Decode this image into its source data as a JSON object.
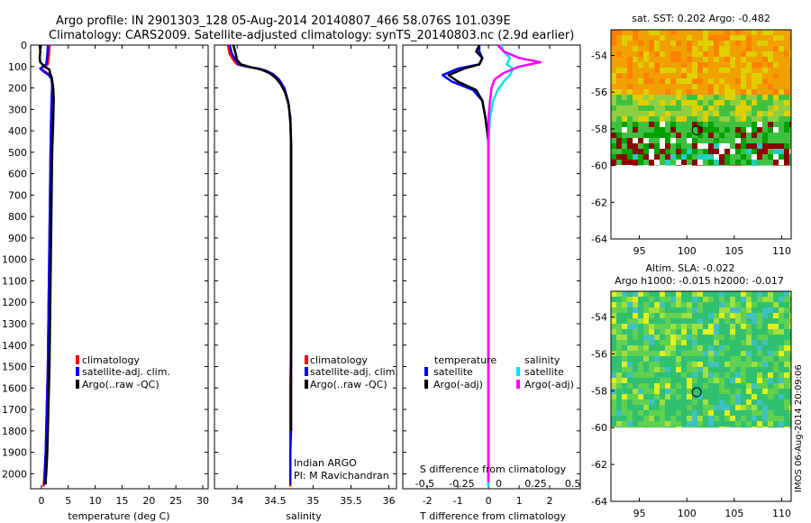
{
  "figure": {
    "title_line1": "Argo profile: IN 2901303_128 05-Aug-2014 20140807_466 58.076S 101.039E",
    "title_line2": "Climatology: CARS2009. Satellite-adjusted climatology: synTS_20140803.nc (2.9d earlier)",
    "credit": "IMOS 06-Aug-2014 20:09:06",
    "institution": "Indian ARGO",
    "pi": "PI: M Ravichandran"
  },
  "colors": {
    "climatology": "#ff0000",
    "satellite": "#0000ff",
    "argo": "#000000",
    "satellite_salinity": "#00e5e5",
    "argo_salinity": "#ff00ff"
  },
  "chart_data": [
    {
      "id": "temperature",
      "type": "line",
      "xlabel": "temperature (deg C)",
      "ylabel": "",
      "xlim": [
        -2,
        31
      ],
      "ylim": [
        2070,
        0
      ],
      "xticks": [
        0,
        5,
        10,
        15,
        20,
        25,
        30
      ],
      "yticks": [
        0,
        100,
        200,
        300,
        400,
        500,
        600,
        700,
        800,
        900,
        1000,
        1100,
        1200,
        1300,
        1400,
        1500,
        1600,
        1700,
        1800,
        1900,
        2000
      ],
      "legend": [
        "climatology",
        "satellite-adj. clim.",
        "Argo(..raw -QC)"
      ],
      "legend_position": "lower-left",
      "series": [
        {
          "name": "climatology",
          "color": "#ff0000",
          "x": [
            1.5,
            1.4,
            1.2,
            0.5,
            -0.2,
            0.8,
            1.6,
            1.9,
            2.0,
            1.9,
            1.8,
            1.7,
            1.6,
            1.5,
            1.4,
            1.3,
            1.2,
            1.1,
            1.0,
            0.9,
            0.8,
            0.7,
            0.6,
            0.5,
            0.4
          ],
          "y": [
            0,
            50,
            90,
            100,
            110,
            125,
            140,
            160,
            190,
            250,
            350,
            500,
            700,
            900,
            1100,
            1300,
            1500,
            1600,
            1700,
            1800,
            1900,
            1950,
            2000,
            2030,
            2060
          ]
        },
        {
          "name": "satellite-adj. clim.",
          "color": "#0000ff",
          "x": [
            1.2,
            1.1,
            0.9,
            0.3,
            -0.2,
            0.5,
            1.4,
            1.9,
            2.0,
            1.9,
            1.8,
            1.7,
            1.6,
            1.5,
            1.4,
            1.3,
            1.2,
            1.1,
            1.0,
            0.9,
            0.8,
            0.7,
            0.6,
            0.6
          ],
          "y": [
            0,
            50,
            90,
            100,
            110,
            125,
            140,
            160,
            190,
            250,
            350,
            500,
            700,
            900,
            1100,
            1300,
            1500,
            1600,
            1700,
            1800,
            1900,
            1950,
            2000,
            2050
          ]
        },
        {
          "name": "Argo(..raw -QC)",
          "color": "#000000",
          "x": [
            -0.3,
            -0.2,
            -0.3,
            -0.2,
            0.6,
            1.5,
            1.6,
            1.9,
            2.2,
            2.3,
            2.2,
            2.0,
            1.9,
            1.8,
            1.7,
            1.6,
            1.5,
            1.4,
            1.3,
            1.2,
            1.1,
            1.0,
            0.9,
            0.8,
            0.8
          ],
          "y": [
            0,
            30,
            60,
            80,
            100,
            115,
            130,
            150,
            200,
            250,
            350,
            500,
            700,
            900,
            1100,
            1300,
            1500,
            1600,
            1700,
            1800,
            1900,
            1950,
            2000,
            2030,
            2050
          ]
        }
      ]
    },
    {
      "id": "salinity",
      "type": "line",
      "xlabel": "salinity",
      "ylabel": "",
      "xlim": [
        33.7,
        36.1
      ],
      "ylim": [
        2070,
        0
      ],
      "xticks": [
        34,
        34.5,
        35,
        35.5,
        36
      ],
      "xticklabels": [
        "34",
        "34.5",
        "35",
        "35.5",
        "36"
      ],
      "legend": [
        "climatology",
        "satellite-adj. clim.",
        "Argo(..raw -QC)"
      ],
      "legend_position": "lower-right",
      "series": [
        {
          "name": "climatology",
          "color": "#ff0000",
          "x": [
            33.88,
            33.9,
            33.95,
            34.0,
            34.12,
            34.28,
            34.38,
            34.47,
            34.55,
            34.62,
            34.67,
            34.7,
            34.71,
            34.71,
            34.71,
            34.71,
            34.71,
            34.71,
            34.7,
            34.7,
            34.7,
            34.7,
            34.7,
            34.7,
            34.7
          ],
          "y": [
            0,
            40,
            70,
            90,
            100,
            110,
            120,
            135,
            160,
            200,
            260,
            340,
            450,
            600,
            800,
            1000,
            1200,
            1400,
            1600,
            1800,
            1900,
            1950,
            2000,
            2030,
            2060
          ]
        },
        {
          "name": "satellite-adj. clim.",
          "color": "#0000ff",
          "x": [
            33.9,
            33.93,
            33.98,
            34.02,
            34.12,
            34.28,
            34.38,
            34.47,
            34.55,
            34.62,
            34.67,
            34.7,
            34.71,
            34.71,
            34.71,
            34.71,
            34.71,
            34.71,
            34.71,
            34.71,
            34.7,
            34.7,
            34.7,
            34.7
          ],
          "y": [
            0,
            40,
            70,
            90,
            100,
            110,
            120,
            135,
            160,
            200,
            260,
            340,
            450,
            600,
            800,
            1000,
            1200,
            1400,
            1600,
            1800,
            1900,
            1950,
            2000,
            2050
          ]
        },
        {
          "name": "Argo(..raw -QC)",
          "color": "#000000",
          "x": [
            33.95,
            33.98,
            34.0,
            34.05,
            34.15,
            34.32,
            34.42,
            34.5,
            34.57,
            34.63,
            34.68,
            34.7,
            34.71,
            34.71,
            34.71,
            34.71,
            34.71,
            34.71,
            34.71,
            34.71
          ],
          "y": [
            0,
            40,
            70,
            90,
            100,
            115,
            130,
            150,
            180,
            220,
            280,
            360,
            460,
            600,
            800,
            1000,
            1200,
            1400,
            1600,
            1800
          ]
        }
      ]
    },
    {
      "id": "difference",
      "type": "line",
      "xlabel": "T difference from climatology",
      "xlabel_top": "S difference from climatology",
      "ylabel": "",
      "xlim": [
        -2.8,
        3.0
      ],
      "ylim": [
        2070,
        0
      ],
      "xticks": [
        -2,
        -1,
        0,
        1,
        2
      ],
      "xticks_salinity": [
        -0.5,
        -0.25,
        0,
        0.25,
        0.5
      ],
      "xticklabels_salinity": [
        "-0.5",
        "-0.25",
        "0",
        "0.25",
        "0.5"
      ],
      "legend_temperature_title": "temperature",
      "legend_salinity_title": "salinity",
      "legend_temperature": [
        "satellite",
        "Argo(-adj)"
      ],
      "legend_salinity": [
        "satellite",
        "Argo(-adj)"
      ],
      "legend_position": "lower-center",
      "series": [
        {
          "name": "temperature satellite",
          "color": "#0000ff",
          "x": [
            -0.3,
            -0.3,
            -0.2,
            -0.3,
            -1.0,
            -1.5,
            -1.2,
            -0.5,
            -0.2,
            -0.1,
            0.0,
            0.0,
            0.0,
            0.0,
            0.0,
            0.0,
            0.0,
            0.0,
            0.0,
            0.0
          ],
          "y": [
            0,
            30,
            60,
            90,
            110,
            140,
            170,
            210,
            260,
            340,
            450,
            600,
            800,
            1000,
            1200,
            1400,
            1600,
            1800,
            2000,
            2060
          ]
        },
        {
          "name": "temperature Argo(-adj)",
          "color": "#000000",
          "x": [
            -0.3,
            -0.4,
            -0.2,
            -0.3,
            -0.8,
            -1.3,
            -1.0,
            -0.4,
            -0.2,
            -0.1,
            0.0,
            0.0,
            0.0,
            0.0,
            0.0,
            0.0,
            0.0,
            0.0,
            0.0,
            0.0
          ],
          "y": [
            0,
            30,
            60,
            90,
            110,
            140,
            170,
            210,
            260,
            340,
            450,
            600,
            800,
            1000,
            1200,
            1400,
            1600,
            1800,
            2000,
            2040
          ]
        },
        {
          "name": "salinity satellite",
          "color": "#00e5e5",
          "x": [
            0.4,
            0.5,
            0.7,
            0.6,
            0.8,
            0.7,
            0.5,
            0.3,
            0.15,
            0.05,
            0.0,
            0.0,
            0.0,
            0.0,
            0.0,
            0.0,
            0.0,
            0.0,
            0.0,
            0.0
          ],
          "y": [
            0,
            30,
            60,
            90,
            110,
            140,
            170,
            210,
            260,
            340,
            450,
            600,
            800,
            1000,
            1200,
            1400,
            1600,
            1800,
            2000,
            2060
          ]
        },
        {
          "name": "salinity Argo(-adj)",
          "color": "#ff00ff",
          "x": [
            0.3,
            0.5,
            1.0,
            1.7,
            1.0,
            0.5,
            0.2,
            0.1,
            0.05,
            0.0,
            0.0,
            0.0,
            0.0,
            0.0,
            0.0,
            0.0,
            0.0,
            0.0,
            0.0,
            0.0
          ],
          "y": [
            0,
            30,
            60,
            80,
            100,
            130,
            160,
            200,
            260,
            340,
            450,
            600,
            800,
            1000,
            1200,
            1400,
            1600,
            1800,
            2000,
            2040
          ]
        }
      ]
    },
    {
      "id": "sst_map",
      "type": "heatmap",
      "title": "sat. SST: 0.202 Argo: -0.482",
      "xlim": [
        92,
        111
      ],
      "ylim": [
        -64,
        -52.6
      ],
      "xticks": [
        95,
        100,
        105,
        110
      ],
      "yticks": [
        -54,
        -56,
        -58,
        -60,
        -62,
        -64
      ],
      "argo_position": [
        101.039,
        -58.076
      ],
      "palette": [
        "#8b0000",
        "#00a000",
        "#40c040",
        "#90d040",
        "#e0d000",
        "#f0a000",
        "#ff8000"
      ]
    },
    {
      "id": "sla_map",
      "type": "heatmap",
      "title_line1": "Altim. SLA: -0.022",
      "title_line2": "Argo h1000: -0.015 h2000: -0.017",
      "xlim": [
        92,
        111
      ],
      "ylim": [
        -64,
        -52.6
      ],
      "xticks": [
        95,
        100,
        105,
        110
      ],
      "yticks": [
        -54,
        -56,
        -58,
        -60,
        -62,
        -64
      ],
      "argo_position": [
        101.039,
        -58.076
      ],
      "palette": [
        "#30c070",
        "#40c060",
        "#60d050",
        "#a0e040",
        "#e0f020",
        "#40c0c0"
      ]
    }
  ]
}
